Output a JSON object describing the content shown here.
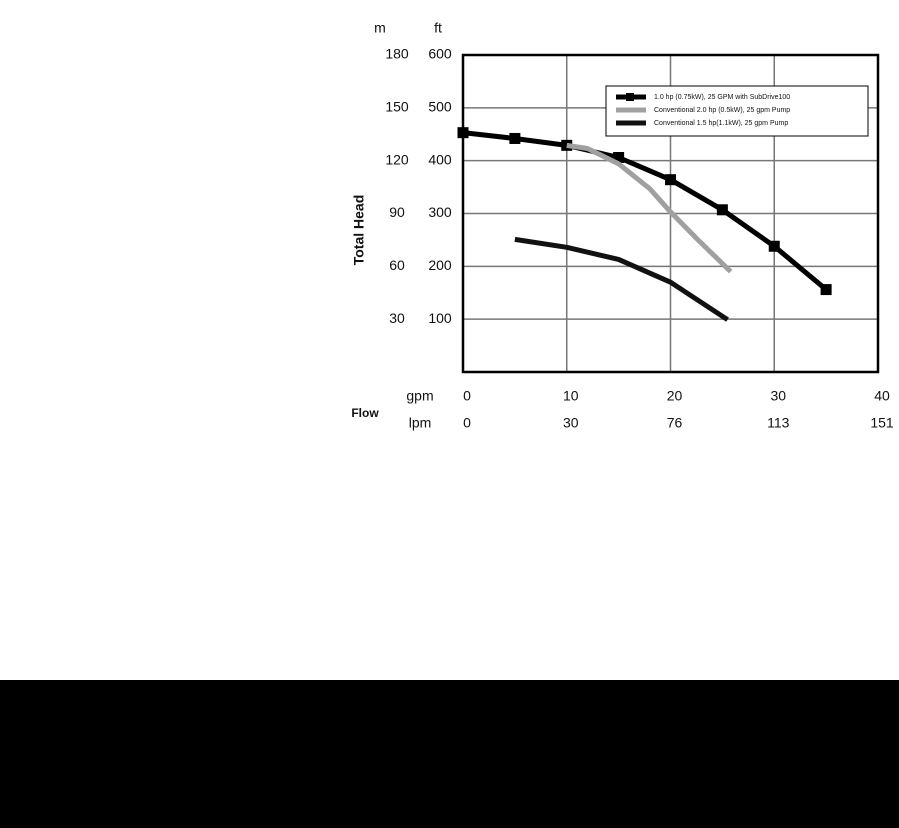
{
  "chart_data": {
    "type": "line",
    "y_axis_label": "Total Head",
    "y_unit": "ft",
    "y2_unit": "m",
    "x_axis_label": "Flow",
    "x_unit": "gpm",
    "x2_unit": "lpm",
    "xlim": [
      0,
      40
    ],
    "xticks": [
      0,
      10,
      20,
      30,
      40
    ],
    "x2ticks": [
      0,
      30,
      76,
      113,
      151
    ],
    "ylim": [
      0,
      600
    ],
    "yticks": [
      100,
      200,
      300,
      400,
      500,
      600
    ],
    "y2lim": [
      0,
      180
    ],
    "y2ticks": [
      30,
      60,
      90,
      120,
      150,
      180
    ],
    "grid": true,
    "legend": "top-right",
    "series": [
      {
        "name": "1.0 hp (0.75kW), 25 GPM with SubDrive100",
        "color": "#000000",
        "marker": "square",
        "x": [
          0,
          5,
          10,
          15,
          20,
          25,
          30,
          35
        ],
        "values": [
          453,
          442,
          429,
          406,
          364,
          307,
          238,
          156
        ]
      },
      {
        "name": "Conventional 2.0 hp (0.5kW), 25 gpm Pump",
        "color": "#a0a0a0",
        "x": [
          10,
          12,
          15,
          18,
          20,
          22.6,
          25.8
        ],
        "values": [
          429,
          423,
          394,
          347,
          303,
          251,
          190
        ]
      },
      {
        "name": "Conventional 1.5 hp(1.1kW), 25 gpm Pump",
        "color": "#111111",
        "x": [
          5,
          10,
          15,
          20,
          25.5
        ],
        "values": [
          251,
          236,
          213,
          170,
          99
        ]
      }
    ]
  }
}
